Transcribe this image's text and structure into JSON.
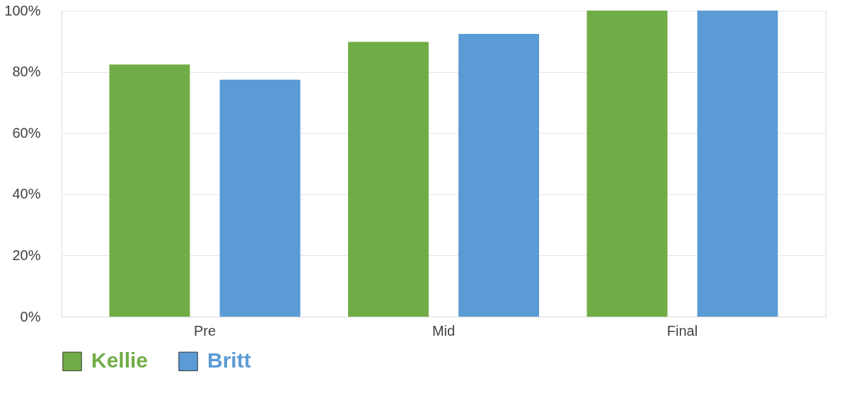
{
  "chart_data": {
    "type": "bar",
    "categories": [
      "Pre",
      "Mid",
      "Final"
    ],
    "series": [
      {
        "name": "Kellie",
        "color": "#70ad47",
        "values": [
          82.4,
          89.8,
          100
        ]
      },
      {
        "name": "Britt",
        "color": "#5b9bd5",
        "values": [
          77.4,
          92.4,
          100
        ]
      }
    ],
    "ylim": [
      0,
      100
    ],
    "yticks": [
      {
        "value": 0,
        "label": "0%"
      },
      {
        "value": 20,
        "label": "20%"
      },
      {
        "value": 40,
        "label": "40%"
      },
      {
        "value": 60,
        "label": "60%"
      },
      {
        "value": 80,
        "label": "80%"
      },
      {
        "value": 100,
        "label": "100%"
      }
    ],
    "grid": "y",
    "legend": "bottom"
  }
}
